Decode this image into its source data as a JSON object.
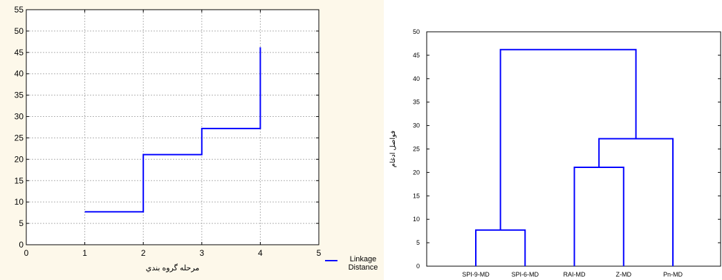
{
  "chart_data": [
    {
      "type": "line",
      "line_shape": "step",
      "background": "#fdf8ea",
      "xlabel": "مرحله گروه بندي",
      "ylabel": "",
      "xlim": [
        0,
        5
      ],
      "ylim": [
        0,
        55
      ],
      "xticks": [
        0,
        1,
        2,
        3,
        4,
        5
      ],
      "yticks": [
        0,
        5,
        10,
        15,
        20,
        25,
        30,
        35,
        40,
        45,
        50,
        55
      ],
      "grid": true,
      "legend": "bottom-right",
      "series": [
        {
          "name": "Linkage Distance",
          "name_lines": [
            "Linkage",
            "Distance"
          ],
          "color": "#0000ff",
          "x": [
            1,
            2,
            3,
            4
          ],
          "y": [
            7.7,
            21.1,
            27.2,
            46.2
          ]
        }
      ]
    },
    {
      "type": "dendrogram",
      "background": "#ffffff",
      "xlabel": "",
      "ylabel": "فواصل ادغام",
      "ylim": [
        0,
        50
      ],
      "yticks": [
        0,
        5,
        10,
        15,
        20,
        25,
        30,
        35,
        40,
        45,
        50
      ],
      "grid": false,
      "categories": [
        "SPI-9-MD",
        "SPI-6-MD",
        "RAI-MD",
        "Z-MD",
        "Pn-MD"
      ],
      "color": "#0000ff",
      "merges": [
        {
          "left": "SPI-9-MD",
          "right": "SPI-6-MD",
          "height": 7.7
        },
        {
          "left": "RAI-MD",
          "right": "Z-MD",
          "height": 21.1
        },
        {
          "left": "RAI-MD + Z-MD",
          "right": "Pn-MD",
          "height": 27.2
        },
        {
          "left": "SPI-9-MD + SPI-6-MD",
          "right": "RAI-MD + Z-MD + Pn-MD",
          "height": 46.2
        }
      ]
    }
  ]
}
